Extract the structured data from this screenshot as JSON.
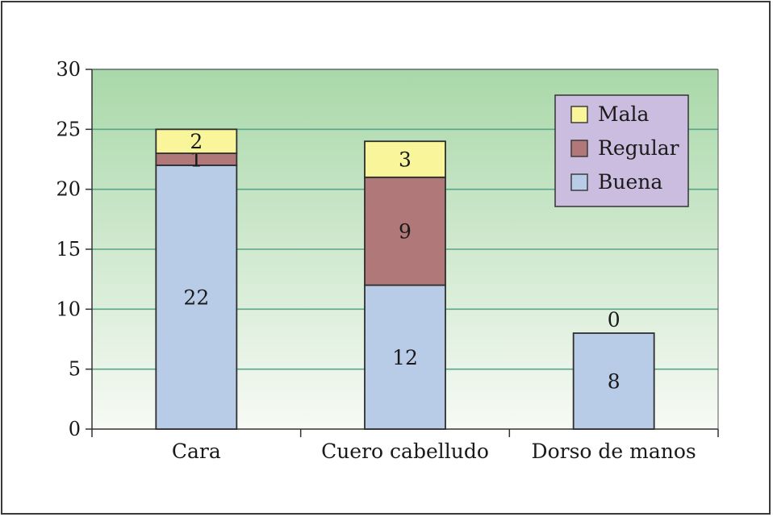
{
  "chart_data": {
    "type": "bar",
    "stacked": true,
    "categories": [
      "Cara",
      "Cuero cabelludo",
      "Dorso de manos"
    ],
    "series": [
      {
        "name": "Buena",
        "values": [
          22,
          12,
          8
        ],
        "color": "#b8cce8"
      },
      {
        "name": "Regular",
        "values": [
          1,
          9,
          null
        ],
        "color": "#b07878"
      },
      {
        "name": "Mala",
        "values": [
          2,
          3,
          0
        ],
        "color": "#f9f59a"
      }
    ],
    "top_labels": [
      null,
      null,
      "0"
    ],
    "ylim": [
      0,
      30
    ],
    "yticks": [
      0,
      5,
      10,
      15,
      20,
      25,
      30
    ],
    "grid": true,
    "legend_position": "top-right",
    "legend_order": [
      "Mala",
      "Regular",
      "Buena"
    ],
    "legend_background": "#cbbde0",
    "plot_background": [
      "#a9d8a9",
      "#f7faf5"
    ],
    "gridline_color": "#5aa68a",
    "xlabel": "",
    "ylabel": "",
    "title": ""
  }
}
